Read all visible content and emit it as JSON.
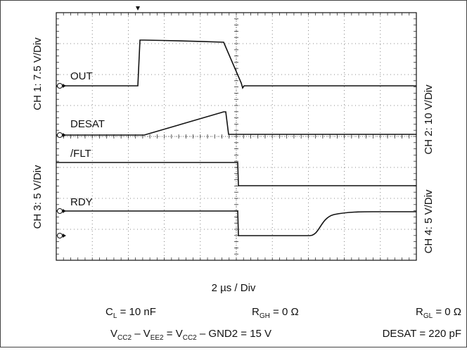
{
  "channels": {
    "ch1": "CH 1: 7.5 V/Div",
    "ch2": "CH 2: 10 V/Div",
    "ch3": "CH 3: 5 V/Div",
    "ch4": "CH 4: 5 V/Div"
  },
  "traces": {
    "out": "OUT",
    "desat": "DESAT",
    "flt": "/FLT",
    "rdy": "RDY"
  },
  "timebase": "2 µs / Div",
  "conditions": {
    "cl": {
      "main": "C",
      "sub": "L",
      "rest": " = 10 nF"
    },
    "rgh": {
      "main": "R",
      "sub": "GH",
      "rest": " = 0 Ω"
    },
    "rgl": {
      "main": "R",
      "sub": "GL",
      "rest": " = 0 Ω"
    },
    "supply": {
      "a": "V",
      "a_sub": "CC2",
      "b": " – V",
      "b_sub": "EE2",
      "c": " = V",
      "c_sub": "CC2",
      "d": " – GND2 = 15 V"
    },
    "desat_cap": "DESAT = 220 pF"
  }
}
